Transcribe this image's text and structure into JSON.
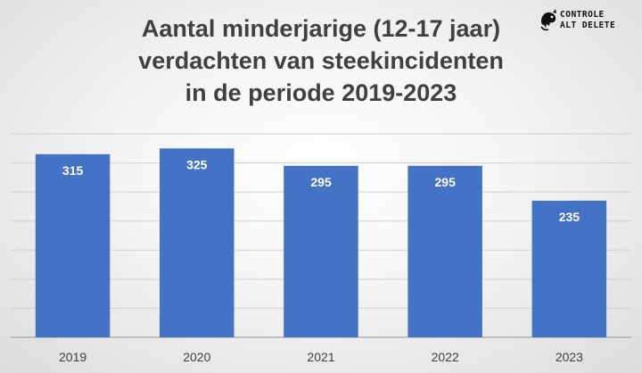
{
  "chart_data": {
    "type": "bar",
    "title_lines": [
      "Aantal minderjarige (12-17 jaar)",
      "verdachten van steekincidenten",
      "in de periode 2019-2023"
    ],
    "categories": [
      "2019",
      "2020",
      "2021",
      "2022",
      "2023"
    ],
    "values": [
      315,
      325,
      295,
      295,
      235
    ],
    "data_labels": [
      "315",
      "325",
      "295",
      "295",
      "235"
    ],
    "ylim": [
      0,
      350
    ],
    "grid": true,
    "bar_color": "#4472C4"
  },
  "logo": {
    "line1": "CONTROLE",
    "line2": "ALT DELETE",
    "icon": "chameleon-icon"
  }
}
